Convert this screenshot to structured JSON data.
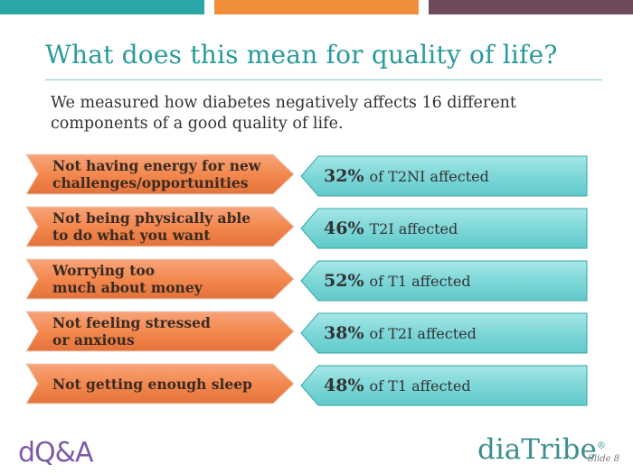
{
  "title": "What does this mean for quality of life?",
  "intro": "We measured how diabetes negatively affects 16 different components of a good quality of life.",
  "colors": {
    "teal_bar": "#2aa6a7",
    "orange_bar": "#f08e3a",
    "plum_bar": "#6e4a5c",
    "arrow_fill": "#f3894f",
    "box_fill": "#7ed7d8",
    "title": "#2a9a9c"
  },
  "rows": [
    {
      "component": "Not having energy for new\nchallenges/opportunities",
      "percent": "32%",
      "group": "of T2NI affected"
    },
    {
      "component": "Not being physically able\n to do what you want",
      "percent": "46%",
      "group": "T2I affected"
    },
    {
      "component": "Worrying too\nmuch about money",
      "percent": "52%",
      "group": "of T1 affected"
    },
    {
      "component": "Not feeling stressed\nor anxious",
      "percent": "38%",
      "group": "of T2I affected"
    },
    {
      "component": "Not getting enough sleep",
      "percent": "48%",
      "group": "of T1 affected"
    }
  ],
  "footer": {
    "left_logo": "dQ&A",
    "right_logo": "diaTribe",
    "trademark": "®",
    "slide_label": "Slide 8"
  }
}
